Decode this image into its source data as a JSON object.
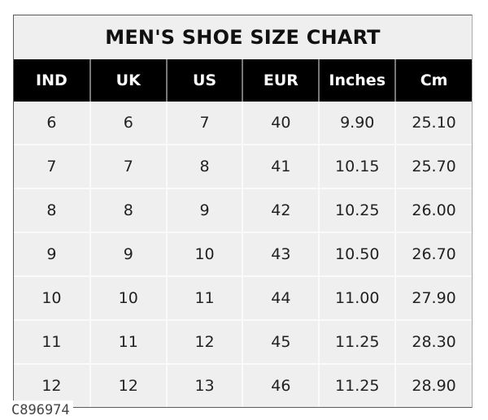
{
  "title": "MEN'S SHOE SIZE CHART",
  "columns": [
    "IND",
    "UK",
    "US",
    "EUR",
    "Inches",
    "Cm"
  ],
  "rows": [
    [
      "6",
      "6",
      "7",
      "40",
      "9.90",
      "25.10"
    ],
    [
      "7",
      "7",
      "8",
      "41",
      "10.15",
      "25.70"
    ],
    [
      "8",
      "8",
      "9",
      "42",
      "10.25",
      "26.00"
    ],
    [
      "9",
      "9",
      "10",
      "43",
      "10.50",
      "26.70"
    ],
    [
      "10",
      "10",
      "11",
      "44",
      "11.00",
      "27.90"
    ],
    [
      "11",
      "11",
      "12",
      "45",
      "11.25",
      "28.30"
    ],
    [
      "12",
      "12",
      "13",
      "46",
      "11.25",
      "28.90"
    ]
  ],
  "product_code": "C896974",
  "colors": {
    "header_bg": "#000000",
    "cell_bg": "#efefef",
    "header_text": "#ffffff"
  }
}
